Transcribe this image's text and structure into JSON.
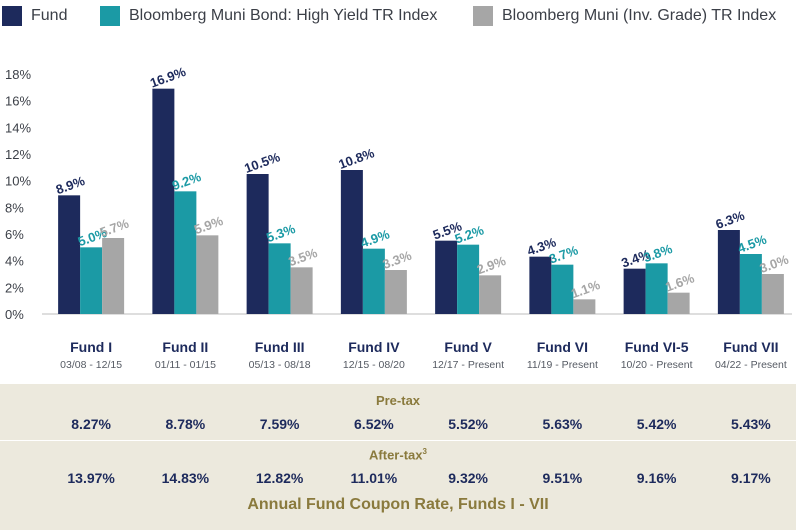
{
  "chart_data": {
    "type": "bar",
    "categories": [
      "Fund I",
      "Fund II",
      "Fund III",
      "Fund IV",
      "Fund V",
      "Fund VI",
      "Fund VI-5",
      "Fund VII"
    ],
    "periods": [
      "03/08 - 12/15",
      "01/11 - 01/15",
      "05/13 - 08/18",
      "12/15 - 08/20",
      "12/17 - Present",
      "11/19 - Present",
      "10/20 - Present",
      "04/22 - Present"
    ],
    "series": [
      {
        "name": "Fund",
        "color": "#1d2a5c",
        "values": [
          8.9,
          16.9,
          10.5,
          10.8,
          5.5,
          4.3,
          3.4,
          6.3
        ],
        "labels": [
          "8.9%",
          "16.9%",
          "10.5%",
          "10.8%",
          "5.5%",
          "4.3%",
          "3.4%",
          "6.3%"
        ]
      },
      {
        "name": "Bloomberg Muni Bond: High Yield TR Index",
        "color": "#1b9aa5",
        "values": [
          5.0,
          9.2,
          5.3,
          4.9,
          5.2,
          3.7,
          3.8,
          4.5
        ],
        "labels": [
          "5.0%",
          "9.2%",
          "5.3%",
          "4.9%",
          "5.2%",
          "3.7%",
          "3.8%",
          "4.5%"
        ]
      },
      {
        "name": "Bloomberg Muni (Inv. Grade) TR Index",
        "color": "#a6a6a6",
        "values": [
          5.7,
          5.9,
          3.5,
          3.3,
          2.9,
          1.1,
          1.6,
          3.0
        ],
        "labels": [
          "5.7%",
          "5.9%",
          "3.5%",
          "3.3%",
          "2.9%",
          "1.1%",
          "1.6%",
          "3.0%"
        ]
      }
    ],
    "y_ticks": [
      "0%",
      "2%",
      "4%",
      "6%",
      "8%",
      "10%",
      "12%",
      "14%",
      "16%",
      "18%"
    ],
    "ylim": [
      0,
      18
    ],
    "grid": false,
    "legend_position": "top"
  },
  "coupon_table": {
    "pretax_label": "Pre-tax",
    "aftertax_label": "After-tax",
    "aftertax_footnote": "3",
    "pretax": [
      "8.27%",
      "8.78%",
      "7.59%",
      "6.52%",
      "5.52%",
      "5.63%",
      "5.42%",
      "5.43%"
    ],
    "aftertax": [
      "13.97%",
      "14.83%",
      "12.82%",
      "11.01%",
      "9.32%",
      "9.51%",
      "9.16%",
      "9.17%"
    ],
    "caption": "Annual Fund Coupon Rate, Funds I - VII"
  }
}
